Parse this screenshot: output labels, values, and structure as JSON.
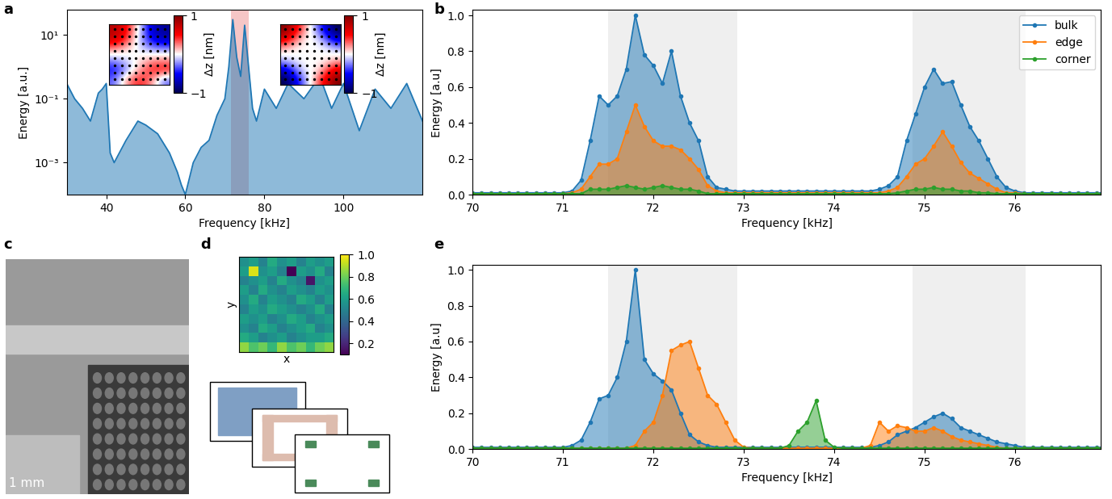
{
  "chart_data": [
    {
      "type": "area",
      "title": "a",
      "x_label": "Frequency [kHz]",
      "y_label": "Energy [a.u.]",
      "log": "y",
      "xlim": [
        30,
        120
      ],
      "xticks": [
        40,
        60,
        80,
        100
      ],
      "ylim": [
        0.0001,
        60
      ],
      "yticks": [
        {
          "value": 0.001,
          "label": "10⁻³"
        },
        {
          "value": 0.1,
          "label": "10⁻¹"
        },
        {
          "value": 10,
          "label": "10¹"
        }
      ],
      "bands": [
        {
          "range": [
            71.5,
            76
          ],
          "color": "#f6c6c6"
        }
      ],
      "x": [
        30,
        32,
        34,
        36,
        38,
        39,
        40,
        41,
        42,
        45,
        48,
        50,
        53,
        56,
        58,
        59,
        60,
        62,
        64,
        66,
        68,
        70,
        71,
        72,
        73,
        74,
        75,
        76,
        77,
        78,
        80,
        83,
        86,
        90,
        94,
        97,
        100,
        104,
        108,
        112,
        116,
        120
      ],
      "series": [
        {
          "color": "#1f77b4",
          "values": [
            0.3,
            0.1,
            0.05,
            0.02,
            0.15,
            0.2,
            0.3,
            0.002,
            0.001,
            0.005,
            0.02,
            0.015,
            0.008,
            0.002,
            0.0005,
            0.0002,
            0.0001,
            0.001,
            0.003,
            0.005,
            0.03,
            0.1,
            1,
            30,
            2,
            0.5,
            20,
            1,
            0.05,
            0.02,
            0.2,
            0.05,
            0.3,
            0.1,
            0.5,
            0.05,
            0.3,
            0.01,
            0.2,
            0.05,
            0.3,
            0.02
          ]
        }
      ],
      "insets": [
        {
          "colorbar_label": "Δz [nm]",
          "clim": [
            -1,
            1
          ],
          "cticks": [
            {
              "value": -1,
              "label": "−1"
            },
            1
          ],
          "cells": [
            [
              0.8,
              0.6,
              0.2,
              -0.3,
              -0.7,
              -0.8
            ],
            [
              0.7,
              0.5,
              0.1,
              -0.3,
              -0.6,
              -0.7
            ],
            [
              0.2,
              0.1,
              0,
              -0.1,
              -0.2,
              -0.2
            ],
            [
              -0.2,
              -0.1,
              0,
              0.1,
              0.2,
              0.2
            ],
            [
              -0.5,
              -0.3,
              0,
              0.3,
              0.5,
              0.5
            ],
            [
              -0.3,
              0.1,
              0.4,
              0.4,
              0.1,
              -0.3
            ]
          ]
        },
        {
          "colorbar_label": "Δz [nm]",
          "clim": [
            -1,
            1
          ],
          "cticks": [
            {
              "value": -1,
              "label": "−1"
            },
            1
          ],
          "cells": [
            [
              1,
              0.6,
              0.2,
              -0.2,
              -0.6,
              -1
            ],
            [
              0.6,
              0.3,
              0,
              0,
              -0.3,
              -0.6
            ],
            [
              0.1,
              0,
              0,
              0,
              0,
              -0.1
            ],
            [
              -0.1,
              0,
              0,
              0,
              0,
              0.1
            ],
            [
              -0.6,
              -0.3,
              0,
              0,
              0.3,
              0.6
            ],
            [
              -1,
              -0.6,
              -0.2,
              0.2,
              0.6,
              1
            ]
          ]
        }
      ]
    },
    {
      "type": "area",
      "title": "b",
      "x_label": "Frequency [kHz]",
      "y_label": "Energy [a.u]",
      "marker": "o",
      "legend": "upper right",
      "xlim": [
        70,
        76.95
      ],
      "xticks": [
        70,
        71,
        72,
        73,
        74,
        75,
        76
      ],
      "ylim": [
        0.0,
        1.03
      ],
      "yticks": [
        0.0,
        0.2,
        0.4,
        0.6,
        0.8,
        1.0
      ],
      "bands": [
        {
          "range": [
            71.5,
            72.93
          ],
          "color": "#efefef"
        },
        {
          "range": [
            74.87,
            76.12
          ],
          "color": "#efefef"
        }
      ],
      "x": [
        70.0,
        70.1,
        70.2,
        70.3,
        70.4,
        70.5,
        70.6,
        70.7,
        70.8,
        70.9,
        71.0,
        71.1,
        71.2,
        71.3,
        71.4,
        71.5,
        71.6,
        71.7,
        71.8,
        71.9,
        72.0,
        72.1,
        72.2,
        72.3,
        72.4,
        72.5,
        72.6,
        72.7,
        72.8,
        72.9,
        73.0,
        73.1,
        73.2,
        73.3,
        73.4,
        73.5,
        73.6,
        73.7,
        73.8,
        73.9,
        74.0,
        74.1,
        74.2,
        74.3,
        74.4,
        74.5,
        74.6,
        74.7,
        74.8,
        74.9,
        75.0,
        75.1,
        75.2,
        75.3,
        75.4,
        75.5,
        75.6,
        75.7,
        75.8,
        75.9,
        76.0,
        76.1,
        76.2,
        76.3,
        76.4,
        76.5,
        76.6,
        76.7,
        76.8,
        76.9,
        77.0
      ],
      "series": [
        {
          "name": "bulk",
          "color": "#1f77b4",
          "values": [
            0.01,
            0.01,
            0.01,
            0.01,
            0.01,
            0.01,
            0.01,
            0.01,
            0.01,
            0.01,
            0.01,
            0.02,
            0.08,
            0.3,
            0.55,
            0.5,
            0.55,
            0.7,
            1.0,
            0.78,
            0.72,
            0.62,
            0.8,
            0.55,
            0.4,
            0.3,
            0.1,
            0.04,
            0.03,
            0.02,
            0.02,
            0.02,
            0.02,
            0.02,
            0.02,
            0.02,
            0.02,
            0.02,
            0.02,
            0.02,
            0.02,
            0.02,
            0.02,
            0.02,
            0.02,
            0.03,
            0.05,
            0.1,
            0.3,
            0.45,
            0.6,
            0.7,
            0.62,
            0.63,
            0.5,
            0.38,
            0.3,
            0.2,
            0.1,
            0.04,
            0.02,
            0.01,
            0.01,
            0.01,
            0.01,
            0.01,
            0.01,
            0.01,
            0.01,
            0.01,
            0.01
          ]
        },
        {
          "name": "edge",
          "color": "#ff7f0e",
          "values": [
            0.005,
            0.005,
            0.005,
            0.005,
            0.005,
            0.005,
            0.005,
            0.005,
            0.005,
            0.005,
            0.005,
            0.01,
            0.03,
            0.1,
            0.17,
            0.17,
            0.2,
            0.35,
            0.5,
            0.38,
            0.3,
            0.27,
            0.27,
            0.25,
            0.2,
            0.14,
            0.05,
            0.02,
            0.01,
            0.01,
            0.01,
            0.01,
            0.01,
            0.01,
            0.01,
            0.01,
            0.01,
            0.01,
            0.01,
            0.01,
            0.01,
            0.01,
            0.01,
            0.01,
            0.01,
            0.01,
            0.02,
            0.04,
            0.1,
            0.17,
            0.2,
            0.27,
            0.35,
            0.27,
            0.18,
            0.12,
            0.09,
            0.06,
            0.03,
            0.01,
            0.01,
            0.005,
            0.005,
            0.005,
            0.005,
            0.005,
            0.005,
            0.005,
            0.005,
            0.005,
            0.005
          ]
        },
        {
          "name": "corner",
          "color": "#2ca02c",
          "values": [
            0.005,
            0.005,
            0.005,
            0.005,
            0.005,
            0.005,
            0.005,
            0.005,
            0.005,
            0.005,
            0.005,
            0.005,
            0.005,
            0.03,
            0.03,
            0.03,
            0.04,
            0.05,
            0.04,
            0.03,
            0.04,
            0.05,
            0.04,
            0.03,
            0.03,
            0.02,
            0.005,
            0.005,
            0.005,
            0.005,
            0.005,
            0.005,
            0.005,
            0.005,
            0.005,
            0.005,
            0.005,
            0.005,
            0.005,
            0.005,
            0.005,
            0.005,
            0.005,
            0.005,
            0.005,
            0.005,
            0.005,
            0.01,
            0.02,
            0.03,
            0.03,
            0.04,
            0.03,
            0.03,
            0.02,
            0.02,
            0.01,
            0.01,
            0.005,
            0.005,
            0.005,
            0.005,
            0.005,
            0.005,
            0.005,
            0.005,
            0.005,
            0.005,
            0.005,
            0.005,
            0.005
          ]
        }
      ]
    },
    {
      "type": "image",
      "title": "c",
      "scale_bar": "1 mm"
    },
    {
      "type": "heatmap",
      "title": "d",
      "x_label": "x",
      "y_label": "y",
      "tick_labels": false,
      "clim": [
        0.1,
        1.0
      ],
      "cticks": [
        0.2,
        0.4,
        0.6,
        0.8,
        1.0
      ],
      "cells": [
        [
          0.55,
          0.6,
          0.5,
          0.65,
          0.55,
          0.6,
          0.5,
          0.6,
          0.55,
          0.6
        ],
        [
          0.6,
          0.95,
          0.55,
          0.6,
          0.5,
          0.1,
          0.6,
          0.55,
          0.65,
          0.5
        ],
        [
          0.5,
          0.55,
          0.6,
          0.5,
          0.65,
          0.55,
          0.5,
          0.15,
          0.55,
          0.6
        ],
        [
          0.6,
          0.5,
          0.65,
          0.55,
          0.5,
          0.6,
          0.55,
          0.5,
          0.6,
          0.55
        ],
        [
          0.55,
          0.65,
          0.5,
          0.6,
          0.55,
          0.5,
          0.65,
          0.6,
          0.5,
          0.6
        ],
        [
          0.5,
          0.6,
          0.55,
          0.65,
          0.6,
          0.55,
          0.5,
          0.55,
          0.65,
          0.5
        ],
        [
          0.6,
          0.55,
          0.6,
          0.5,
          0.55,
          0.65,
          0.6,
          0.5,
          0.55,
          0.6
        ],
        [
          0.55,
          0.5,
          0.65,
          0.6,
          0.5,
          0.55,
          0.6,
          0.65,
          0.5,
          0.55
        ],
        [
          0.65,
          0.6,
          0.5,
          0.55,
          0.6,
          0.5,
          0.55,
          0.6,
          0.6,
          0.65
        ],
        [
          0.85,
          0.75,
          0.8,
          0.7,
          0.85,
          0.75,
          0.8,
          0.7,
          0.8,
          0.85
        ]
      ]
    },
    {
      "type": "area",
      "title": "e",
      "x_label": "Frequency [kHz]",
      "y_label": "Energy [a.u]",
      "marker": "o",
      "xlim": [
        70,
        76.95
      ],
      "xticks": [
        70,
        71,
        72,
        73,
        74,
        75,
        76
      ],
      "ylim": [
        0.0,
        1.03
      ],
      "yticks": [
        0.0,
        0.2,
        0.4,
        0.6,
        0.8,
        1.0
      ],
      "bands": [
        {
          "range": [
            71.5,
            72.93
          ],
          "color": "#efefef"
        },
        {
          "range": [
            74.87,
            76.12
          ],
          "color": "#efefef"
        }
      ],
      "x": [
        70.0,
        70.1,
        70.2,
        70.3,
        70.4,
        70.5,
        70.6,
        70.7,
        70.8,
        70.9,
        71.0,
        71.1,
        71.2,
        71.3,
        71.4,
        71.5,
        71.6,
        71.7,
        71.8,
        71.9,
        72.0,
        72.1,
        72.2,
        72.3,
        72.4,
        72.5,
        72.6,
        72.7,
        72.8,
        72.9,
        73.0,
        73.1,
        73.2,
        73.3,
        73.4,
        73.5,
        73.6,
        73.7,
        73.8,
        73.9,
        74.0,
        74.1,
        74.2,
        74.3,
        74.4,
        74.5,
        74.6,
        74.7,
        74.8,
        74.9,
        75.0,
        75.1,
        75.2,
        75.3,
        75.4,
        75.5,
        75.6,
        75.7,
        75.8,
        75.9,
        76.0,
        76.1,
        76.2,
        76.3,
        76.4,
        76.5,
        76.6,
        76.7,
        76.8,
        76.9,
        77.0
      ],
      "series": [
        {
          "name": "bulk",
          "color": "#1f77b4",
          "values": [
            0.01,
            0.01,
            0.01,
            0.01,
            0.01,
            0.01,
            0.01,
            0.01,
            0.01,
            0.01,
            0.01,
            0.02,
            0.05,
            0.15,
            0.28,
            0.3,
            0.4,
            0.6,
            1.0,
            0.5,
            0.42,
            0.38,
            0.33,
            0.2,
            0.08,
            0.04,
            0.02,
            0.01,
            0.01,
            0.01,
            0.01,
            0.01,
            0.01,
            0.01,
            0.01,
            0.01,
            0.01,
            0.01,
            0.01,
            0.01,
            0.01,
            0.01,
            0.01,
            0.01,
            0.01,
            0.02,
            0.04,
            0.08,
            0.1,
            0.12,
            0.15,
            0.18,
            0.2,
            0.17,
            0.12,
            0.1,
            0.08,
            0.06,
            0.04,
            0.03,
            0.02,
            0.01,
            0.01,
            0.01,
            0.01,
            0.01,
            0.01,
            0.01,
            0.01,
            0.01,
            0.01
          ]
        },
        {
          "name": "edge",
          "color": "#ff7f0e",
          "values": [
            0.005,
            0.005,
            0.005,
            0.005,
            0.005,
            0.005,
            0.005,
            0.005,
            0.005,
            0.005,
            0.005,
            0.005,
            0.005,
            0.005,
            0.005,
            0.005,
            0.005,
            0.005,
            0.02,
            0.1,
            0.15,
            0.3,
            0.55,
            0.58,
            0.6,
            0.45,
            0.3,
            0.25,
            0.15,
            0.05,
            0.01,
            0.005,
            0.005,
            0.005,
            0.005,
            0.005,
            0.005,
            0.005,
            0.005,
            0.005,
            0.005,
            0.005,
            0.005,
            0.005,
            0.02,
            0.15,
            0.1,
            0.13,
            0.12,
            0.1,
            0.1,
            0.12,
            0.1,
            0.07,
            0.05,
            0.04,
            0.03,
            0.02,
            0.01,
            0.005,
            0.005,
            0.005,
            0.005,
            0.005,
            0.005,
            0.005,
            0.005,
            0.005,
            0.005,
            0.005,
            0.005
          ]
        },
        {
          "name": "corner",
          "color": "#2ca02c",
          "values": [
            0.005,
            0.005,
            0.005,
            0.005,
            0.005,
            0.005,
            0.005,
            0.005,
            0.005,
            0.005,
            0.005,
            0.005,
            0.005,
            0.005,
            0.005,
            0.005,
            0.005,
            0.005,
            0.005,
            0.005,
            0.005,
            0.005,
            0.005,
            0.005,
            0.005,
            0.005,
            0.005,
            0.005,
            0.005,
            0.005,
            0.005,
            0.005,
            0.005,
            0.005,
            0.005,
            0.02,
            0.1,
            0.15,
            0.27,
            0.05,
            0.01,
            0.005,
            0.005,
            0.005,
            0.005,
            0.005,
            0.005,
            0.005,
            0.005,
            0.005,
            0.005,
            0.005,
            0.005,
            0.005,
            0.005,
            0.005,
            0.005,
            0.005,
            0.005,
            0.005,
            0.005,
            0.005,
            0.005,
            0.005,
            0.005,
            0.005,
            0.005,
            0.005,
            0.005,
            0.005,
            0.005
          ]
        }
      ]
    }
  ]
}
